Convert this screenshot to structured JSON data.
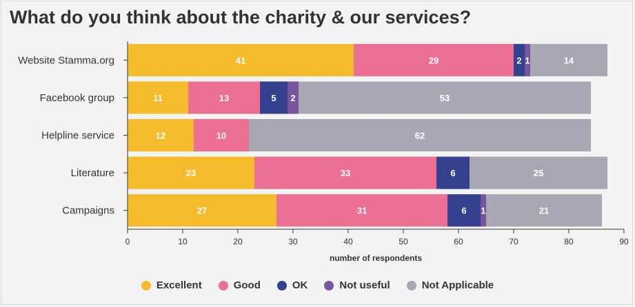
{
  "title": "What do you think about the charity & our services?",
  "chart_data": {
    "type": "bar",
    "orientation": "horizontal",
    "stacked": true,
    "categories": [
      "Website Stamma.org",
      "Facebook group",
      "Helpline service",
      "Literature",
      "Campaigns"
    ],
    "series": [
      {
        "name": "Excellent",
        "color": "#f6bb2c",
        "values": [
          41,
          11,
          12,
          23,
          27
        ]
      },
      {
        "name": "Good",
        "color": "#ec6f94",
        "values": [
          29,
          13,
          10,
          33,
          31
        ]
      },
      {
        "name": "OK",
        "color": "#33418f",
        "values": [
          2,
          5,
          0,
          6,
          6
        ]
      },
      {
        "name": "Not useful",
        "color": "#7a549c",
        "values": [
          1,
          2,
          0,
          0,
          1
        ]
      },
      {
        "name": "Not Applicable",
        "color": "#a9a7b4",
        "values": [
          14,
          53,
          62,
          25,
          21
        ]
      }
    ],
    "xlabel": "number of respondents",
    "ylabel": "",
    "xlim": [
      0,
      90
    ],
    "xticks": [
      0,
      10,
      20,
      30,
      40,
      50,
      60,
      70,
      80,
      90
    ],
    "legend_position": "bottom",
    "grid": false
  }
}
